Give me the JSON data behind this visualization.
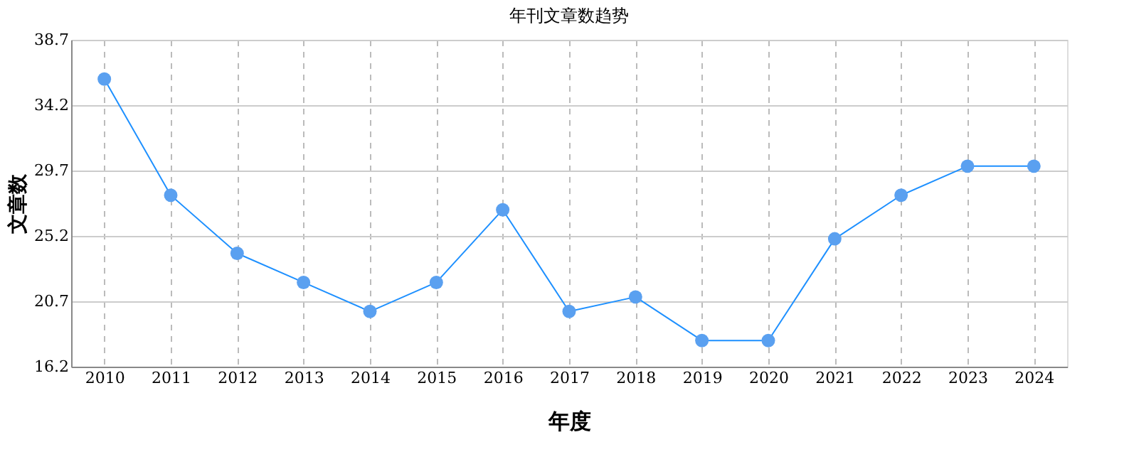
{
  "chart_data": {
    "type": "line",
    "title": "年刊文章数趋势",
    "xlabel": "年度",
    "ylabel": "文章数",
    "categories": [
      "2010",
      "2011",
      "2012",
      "2013",
      "2014",
      "2015",
      "2016",
      "2017",
      "2018",
      "2019",
      "2020",
      "2021",
      "2022",
      "2023",
      "2024"
    ],
    "series": [
      {
        "color": "#1e90ff",
        "values": [
          36,
          28,
          24,
          22,
          20,
          22,
          27,
          20,
          21,
          18,
          18,
          25,
          28,
          30,
          30
        ]
      }
    ],
    "ylim": [
      16.2,
      38.7
    ],
    "yticks": [
      16.2,
      20.7,
      25.2,
      29.7,
      34.2,
      38.7
    ],
    "grid": true,
    "marker": "circle",
    "line_style": "solid"
  }
}
